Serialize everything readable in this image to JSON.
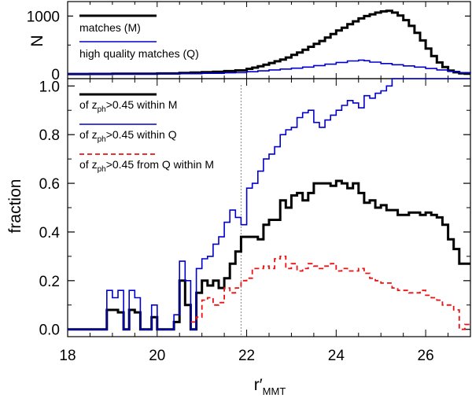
{
  "chart_data": [
    {
      "type": "line",
      "panel": "top",
      "ylabel": "N",
      "xlim": [
        18,
        27
      ],
      "ylim": [
        -80,
        1250
      ],
      "yticks": [
        0,
        1000
      ],
      "legend_placement": "top-left",
      "series": [
        {
          "name": "matches (M)",
          "color": "#000000",
          "style": "solid-thick",
          "points": [
            [
              18.0,
              0
            ],
            [
              18.5,
              2
            ],
            [
              19.0,
              4
            ],
            [
              19.5,
              6
            ],
            [
              20.0,
              10
            ],
            [
              20.5,
              18
            ],
            [
              20.75,
              25
            ],
            [
              21.0,
              32
            ],
            [
              21.25,
              40
            ],
            [
              21.5,
              50
            ],
            [
              21.75,
              62
            ],
            [
              22.0,
              90
            ],
            [
              22.125,
              110
            ],
            [
              22.25,
              135
            ],
            [
              22.375,
              160
            ],
            [
              22.5,
              190
            ],
            [
              22.625,
              220
            ],
            [
              22.75,
              250
            ],
            [
              22.875,
              285
            ],
            [
              23.0,
              330
            ],
            [
              23.125,
              370
            ],
            [
              23.25,
              420
            ],
            [
              23.375,
              470
            ],
            [
              23.5,
              520
            ],
            [
              23.625,
              570
            ],
            [
              23.75,
              630
            ],
            [
              23.875,
              690
            ],
            [
              24.0,
              750
            ],
            [
              24.125,
              800
            ],
            [
              24.25,
              860
            ],
            [
              24.375,
              910
            ],
            [
              24.5,
              960
            ],
            [
              24.625,
              1000
            ],
            [
              24.75,
              1030
            ],
            [
              24.875,
              1060
            ],
            [
              25.0,
              1080
            ],
            [
              25.125,
              1090
            ],
            [
              25.25,
              1060
            ],
            [
              25.375,
              1010
            ],
            [
              25.5,
              930
            ],
            [
              25.625,
              830
            ],
            [
              25.75,
              710
            ],
            [
              25.875,
              580
            ],
            [
              26.0,
              440
            ],
            [
              26.125,
              310
            ],
            [
              26.25,
              200
            ],
            [
              26.375,
              120
            ],
            [
              26.5,
              60
            ],
            [
              26.625,
              30
            ],
            [
              26.75,
              12
            ],
            [
              26.875,
              5
            ],
            [
              27.0,
              5
            ]
          ]
        },
        {
          "name": "high quality matches (Q)",
          "color": "#0000cc",
          "style": "solid-thin",
          "points": [
            [
              18.0,
              0
            ],
            [
              19.0,
              1
            ],
            [
              20.0,
              3
            ],
            [
              20.5,
              6
            ],
            [
              21.0,
              12
            ],
            [
              21.5,
              20
            ],
            [
              21.75,
              25
            ],
            [
              22.0,
              40
            ],
            [
              22.25,
              55
            ],
            [
              22.5,
              70
            ],
            [
              22.75,
              85
            ],
            [
              23.0,
              100
            ],
            [
              23.25,
              120
            ],
            [
              23.5,
              145
            ],
            [
              23.75,
              170
            ],
            [
              24.0,
              200
            ],
            [
              24.25,
              225
            ],
            [
              24.5,
              240
            ],
            [
              24.625,
              230
            ],
            [
              24.75,
              205
            ],
            [
              25.0,
              180
            ],
            [
              25.25,
              160
            ],
            [
              25.5,
              140
            ],
            [
              25.75,
              120
            ],
            [
              26.0,
              95
            ],
            [
              26.25,
              70
            ],
            [
              26.5,
              45
            ],
            [
              26.75,
              25
            ],
            [
              27.0,
              10
            ]
          ]
        }
      ]
    },
    {
      "type": "line",
      "panel": "bottom",
      "xlabel_main": "r′",
      "xlabel_sub": "MMT",
      "ylabel": "fraction",
      "xlim": [
        18,
        27
      ],
      "ylim": [
        -0.03,
        1.03
      ],
      "xticks": [
        18,
        20,
        22,
        24,
        26
      ],
      "yticks": [
        0.0,
        0.2,
        0.4,
        0.6,
        0.8,
        1.0
      ],
      "vertical_reference_line": 21.875,
      "legend_placement": "top-left",
      "series": [
        {
          "name": "of z_ph>0.45 within M",
          "label_parts": [
            "of z",
            "ph",
            ">0.45 within M"
          ],
          "color": "#000000",
          "style": "solid-thick",
          "points": [
            [
              18.0,
              0
            ],
            [
              18.75,
              0
            ],
            [
              18.875,
              0.08
            ],
            [
              19.0,
              0.08
            ],
            [
              19.125,
              0.07
            ],
            [
              19.25,
              0
            ],
            [
              19.375,
              0.08
            ],
            [
              19.5,
              0.07
            ],
            [
              19.625,
              0
            ],
            [
              19.75,
              0
            ],
            [
              19.875,
              0.05
            ],
            [
              20.0,
              0
            ],
            [
              20.125,
              0
            ],
            [
              20.25,
              0
            ],
            [
              20.375,
              0.03
            ],
            [
              20.5,
              0.2
            ],
            [
              20.625,
              0.1
            ],
            [
              20.75,
              0
            ],
            [
              20.875,
              0.15
            ],
            [
              21.0,
              0.2
            ],
            [
              21.125,
              0.18
            ],
            [
              21.25,
              0.2
            ],
            [
              21.375,
              0.17
            ],
            [
              21.5,
              0.21
            ],
            [
              21.625,
              0.27
            ],
            [
              21.75,
              0.32
            ],
            [
              21.875,
              0.38
            ],
            [
              22.0,
              0.38
            ],
            [
              22.125,
              0.38
            ],
            [
              22.25,
              0.37
            ],
            [
              22.375,
              0.43
            ],
            [
              22.5,
              0.45
            ],
            [
              22.625,
              0.45
            ],
            [
              22.75,
              0.53
            ],
            [
              22.875,
              0.5
            ],
            [
              23.0,
              0.55
            ],
            [
              23.125,
              0.56
            ],
            [
              23.25,
              0.53
            ],
            [
              23.375,
              0.56
            ],
            [
              23.5,
              0.6
            ],
            [
              23.625,
              0.6
            ],
            [
              23.75,
              0.6
            ],
            [
              23.875,
              0.59
            ],
            [
              24.0,
              0.61
            ],
            [
              24.125,
              0.6
            ],
            [
              24.25,
              0.58
            ],
            [
              24.375,
              0.6
            ],
            [
              24.5,
              0.56
            ],
            [
              24.625,
              0.52
            ],
            [
              24.75,
              0.53
            ],
            [
              24.875,
              0.5
            ],
            [
              25.0,
              0.51
            ],
            [
              25.125,
              0.49
            ],
            [
              25.25,
              0.49
            ],
            [
              25.375,
              0.47
            ],
            [
              25.5,
              0.47
            ],
            [
              25.625,
              0.48
            ],
            [
              25.75,
              0.48
            ],
            [
              25.875,
              0.47
            ],
            [
              26.0,
              0.48
            ],
            [
              26.125,
              0.47
            ],
            [
              26.25,
              0.46
            ],
            [
              26.375,
              0.43
            ],
            [
              26.5,
              0.37
            ],
            [
              26.625,
              0.33
            ],
            [
              26.75,
              0.27
            ],
            [
              26.875,
              0.27
            ],
            [
              27.0,
              0.27
            ]
          ]
        },
        {
          "name": "of z_ph>0.45 within Q",
          "label_parts": [
            "of z",
            "ph",
            ">0.45 within Q"
          ],
          "color": "#0000cc",
          "style": "solid-thin",
          "points": [
            [
              18.0,
              0
            ],
            [
              18.75,
              0
            ],
            [
              18.875,
              0.16
            ],
            [
              19.0,
              0.13
            ],
            [
              19.125,
              0.16
            ],
            [
              19.25,
              0
            ],
            [
              19.375,
              0.16
            ],
            [
              19.5,
              0.13
            ],
            [
              19.625,
              0
            ],
            [
              19.75,
              0
            ],
            [
              19.875,
              0.1
            ],
            [
              20.0,
              0
            ],
            [
              20.125,
              0
            ],
            [
              20.25,
              0
            ],
            [
              20.375,
              0.06
            ],
            [
              20.5,
              0.28
            ],
            [
              20.625,
              0.2
            ],
            [
              20.75,
              0
            ],
            [
              20.875,
              0.25
            ],
            [
              21.0,
              0.29
            ],
            [
              21.125,
              0.3
            ],
            [
              21.25,
              0.35
            ],
            [
              21.375,
              0.38
            ],
            [
              21.5,
              0.44
            ],
            [
              21.625,
              0.49
            ],
            [
              21.75,
              0.46
            ],
            [
              21.875,
              0.43
            ],
            [
              22.0,
              0.58
            ],
            [
              22.125,
              0.6
            ],
            [
              22.25,
              0.65
            ],
            [
              22.375,
              0.7
            ],
            [
              22.5,
              0.72
            ],
            [
              22.625,
              0.75
            ],
            [
              22.75,
              0.8
            ],
            [
              22.875,
              0.82
            ],
            [
              23.0,
              0.83
            ],
            [
              23.125,
              0.87
            ],
            [
              23.25,
              0.89
            ],
            [
              23.375,
              0.9
            ],
            [
              23.5,
              0.85
            ],
            [
              23.625,
              0.83
            ],
            [
              23.75,
              0.86
            ],
            [
              23.875,
              0.88
            ],
            [
              24.0,
              0.9
            ],
            [
              24.125,
              0.92
            ],
            [
              24.25,
              0.94
            ],
            [
              24.375,
              0.93
            ],
            [
              24.5,
              0.91
            ],
            [
              24.625,
              0.96
            ],
            [
              24.75,
              0.95
            ],
            [
              24.875,
              0.97
            ],
            [
              25.0,
              0.98
            ],
            [
              25.125,
              1.0
            ],
            [
              25.25,
              1.03
            ],
            [
              25.375,
              1.03
            ],
            [
              27.0,
              1.03
            ]
          ]
        },
        {
          "name": "of z_ph>0.45 from Q within M",
          "label_parts": [
            "of z",
            "ph",
            ">0.45 from Q within M"
          ],
          "color": "#ee1111",
          "style": "dashed",
          "points": [
            [
              20.75,
              0.03
            ],
            [
              20.875,
              0.05
            ],
            [
              21.0,
              0.12
            ],
            [
              21.125,
              0.13
            ],
            [
              21.25,
              0.1
            ],
            [
              21.375,
              0.11
            ],
            [
              21.5,
              0.17
            ],
            [
              21.625,
              0.15
            ],
            [
              21.75,
              0.17
            ],
            [
              21.875,
              0.2
            ],
            [
              22.0,
              0.21
            ],
            [
              22.125,
              0.25
            ],
            [
              22.25,
              0.25
            ],
            [
              22.375,
              0.26
            ],
            [
              22.5,
              0.25
            ],
            [
              22.625,
              0.29
            ],
            [
              22.75,
              0.3
            ],
            [
              22.875,
              0.25
            ],
            [
              23.0,
              0.27
            ],
            [
              23.125,
              0.24
            ],
            [
              23.25,
              0.25
            ],
            [
              23.375,
              0.27
            ],
            [
              23.5,
              0.26
            ],
            [
              23.625,
              0.25
            ],
            [
              23.75,
              0.26
            ],
            [
              23.875,
              0.27
            ],
            [
              24.0,
              0.24
            ],
            [
              24.125,
              0.25
            ],
            [
              24.25,
              0.24
            ],
            [
              24.375,
              0.24
            ],
            [
              24.5,
              0.25
            ],
            [
              24.625,
              0.23
            ],
            [
              24.75,
              0.21
            ],
            [
              24.875,
              0.2
            ],
            [
              25.0,
              0.19
            ],
            [
              25.125,
              0.19
            ],
            [
              25.25,
              0.17
            ],
            [
              25.375,
              0.16
            ],
            [
              25.5,
              0.16
            ],
            [
              25.625,
              0.15
            ],
            [
              25.75,
              0.15
            ],
            [
              25.875,
              0.16
            ],
            [
              26.0,
              0.14
            ],
            [
              26.125,
              0.13
            ],
            [
              26.25,
              0.12
            ],
            [
              26.375,
              0.1
            ],
            [
              26.5,
              0.1
            ],
            [
              26.625,
              0.08
            ],
            [
              26.75,
              0.0
            ],
            [
              26.875,
              0.02
            ],
            [
              27.0,
              0.03
            ]
          ]
        }
      ]
    }
  ]
}
